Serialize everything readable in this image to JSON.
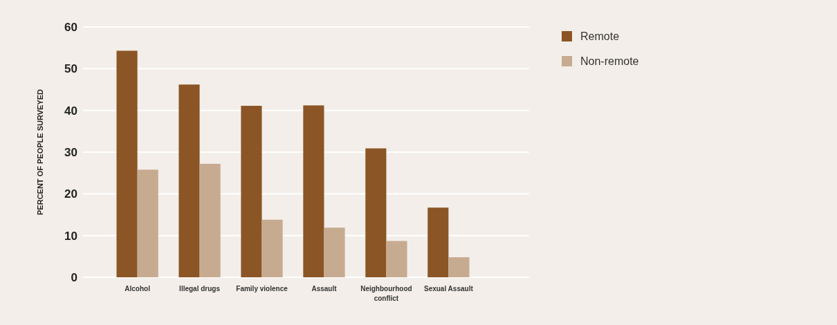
{
  "chart_data": {
    "type": "bar",
    "ylabel": "PERCENT OF PEOPLE SURVEYED",
    "categories": [
      "Alcohol",
      "Illegal drugs",
      "Family violence",
      "Assault",
      "Neighbourhood conflict",
      "Sexual Assault"
    ],
    "series": [
      {
        "name": "Remote",
        "color": "#8b5526",
        "values": [
          54.3,
          46.2,
          41.1,
          41.2,
          30.9,
          16.7
        ]
      },
      {
        "name": "Non-remote",
        "color": "#c7ab91",
        "values": [
          25.8,
          27.2,
          13.8,
          11.9,
          8.7,
          4.8
        ]
      }
    ],
    "ylim": [
      0,
      60
    ],
    "yticks": [
      0,
      10,
      20,
      30,
      40,
      50,
      60
    ],
    "grid": "y",
    "legend": "right"
  }
}
